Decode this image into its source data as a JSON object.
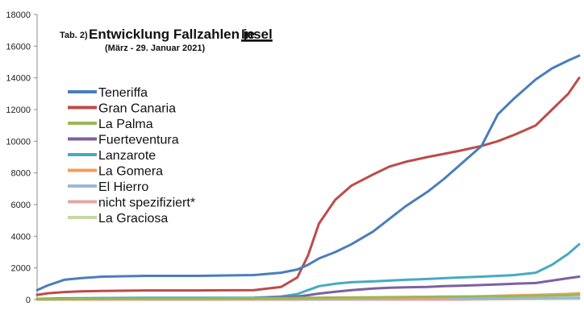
{
  "chart_data": {
    "type": "line",
    "title_prefix": "Tab. 2)",
    "title": "Entwicklung Fallzahlen je",
    "title_underlined": "Insel",
    "subtitle": "(März - 29. Januar 2021)",
    "xlabel": "",
    "ylabel": "",
    "ylim": [
      0,
      18000
    ],
    "yticks": [
      0,
      2000,
      4000,
      6000,
      8000,
      10000,
      12000,
      14000,
      16000,
      18000
    ],
    "x_labels_shown": false,
    "grid": false,
    "legend_position": "left",
    "x": [
      0,
      2,
      5,
      8,
      12,
      20,
      30,
      40,
      45,
      48,
      50,
      52,
      55,
      58,
      62,
      65,
      68,
      72,
      75,
      78,
      82,
      85,
      88,
      92,
      95,
      98,
      100
    ],
    "series": [
      {
        "name": "Teneriffa",
        "color": "#4a7ebb",
        "values": [
          600,
          900,
          1250,
          1350,
          1450,
          1500,
          1500,
          1550,
          1700,
          1900,
          2200,
          2600,
          3000,
          3500,
          4300,
          5100,
          5900,
          6800,
          7600,
          8500,
          9700,
          11700,
          12700,
          13900,
          14600,
          15100,
          15400
        ]
      },
      {
        "name": "Gran Canaria",
        "color": "#be4b48",
        "values": [
          300,
          400,
          480,
          520,
          550,
          580,
          580,
          600,
          800,
          1400,
          2800,
          4800,
          6300,
          7200,
          7900,
          8400,
          8700,
          9000,
          9200,
          9400,
          9700,
          10000,
          10400,
          11000,
          12000,
          13000,
          14000
        ]
      },
      {
        "name": "La Palma",
        "color": "#98b954",
        "values": [
          20,
          30,
          40,
          50,
          60,
          70,
          70,
          80,
          90,
          100,
          110,
          120,
          130,
          140,
          150,
          160,
          170,
          180,
          190,
          200,
          210,
          220,
          230,
          240,
          260,
          280,
          300
        ]
      },
      {
        "name": "Fuerteventura",
        "color": "#7d60a0",
        "values": [
          30,
          40,
          50,
          60,
          70,
          80,
          80,
          90,
          150,
          200,
          280,
          380,
          500,
          600,
          700,
          750,
          780,
          800,
          850,
          880,
          920,
          960,
          1000,
          1050,
          1200,
          1350,
          1450
        ]
      },
      {
        "name": "Lanzarote",
        "color": "#46aac4",
        "values": [
          40,
          60,
          80,
          90,
          100,
          110,
          110,
          120,
          200,
          350,
          600,
          850,
          1000,
          1100,
          1150,
          1200,
          1250,
          1300,
          1350,
          1400,
          1450,
          1500,
          1550,
          1700,
          2200,
          2900,
          3500
        ]
      },
      {
        "name": "La Gomera",
        "color": "#f59d56",
        "values": [
          5,
          10,
          15,
          20,
          25,
          30,
          30,
          35,
          40,
          50,
          60,
          70,
          80,
          90,
          100,
          110,
          120,
          130,
          150,
          180,
          210,
          240,
          270,
          300,
          330,
          360,
          400
        ]
      },
      {
        "name": "El Hierro",
        "color": "#9bb7d9",
        "values": [
          2,
          4,
          6,
          8,
          10,
          12,
          12,
          14,
          16,
          18,
          20,
          25,
          30,
          35,
          40,
          45,
          50,
          55,
          60,
          65,
          70,
          75,
          80,
          90,
          100,
          110,
          120
        ]
      },
      {
        "name": "nicht spezifiziert*",
        "color": "#e6a6a4",
        "values": [
          0,
          0,
          0,
          0,
          0,
          0,
          0,
          0,
          0,
          0,
          0,
          0,
          0,
          0,
          0,
          0,
          0,
          0,
          0,
          0,
          20,
          40,
          60,
          80,
          90,
          100,
          100
        ]
      },
      {
        "name": "La Graciosa",
        "color": "#c4d8a3",
        "values": [
          0,
          0,
          0,
          0,
          0,
          0,
          0,
          0,
          0,
          0,
          0,
          0,
          0,
          0,
          0,
          0,
          0,
          5,
          10,
          15,
          20,
          25,
          30,
          35,
          40,
          45,
          50
        ]
      }
    ]
  }
}
